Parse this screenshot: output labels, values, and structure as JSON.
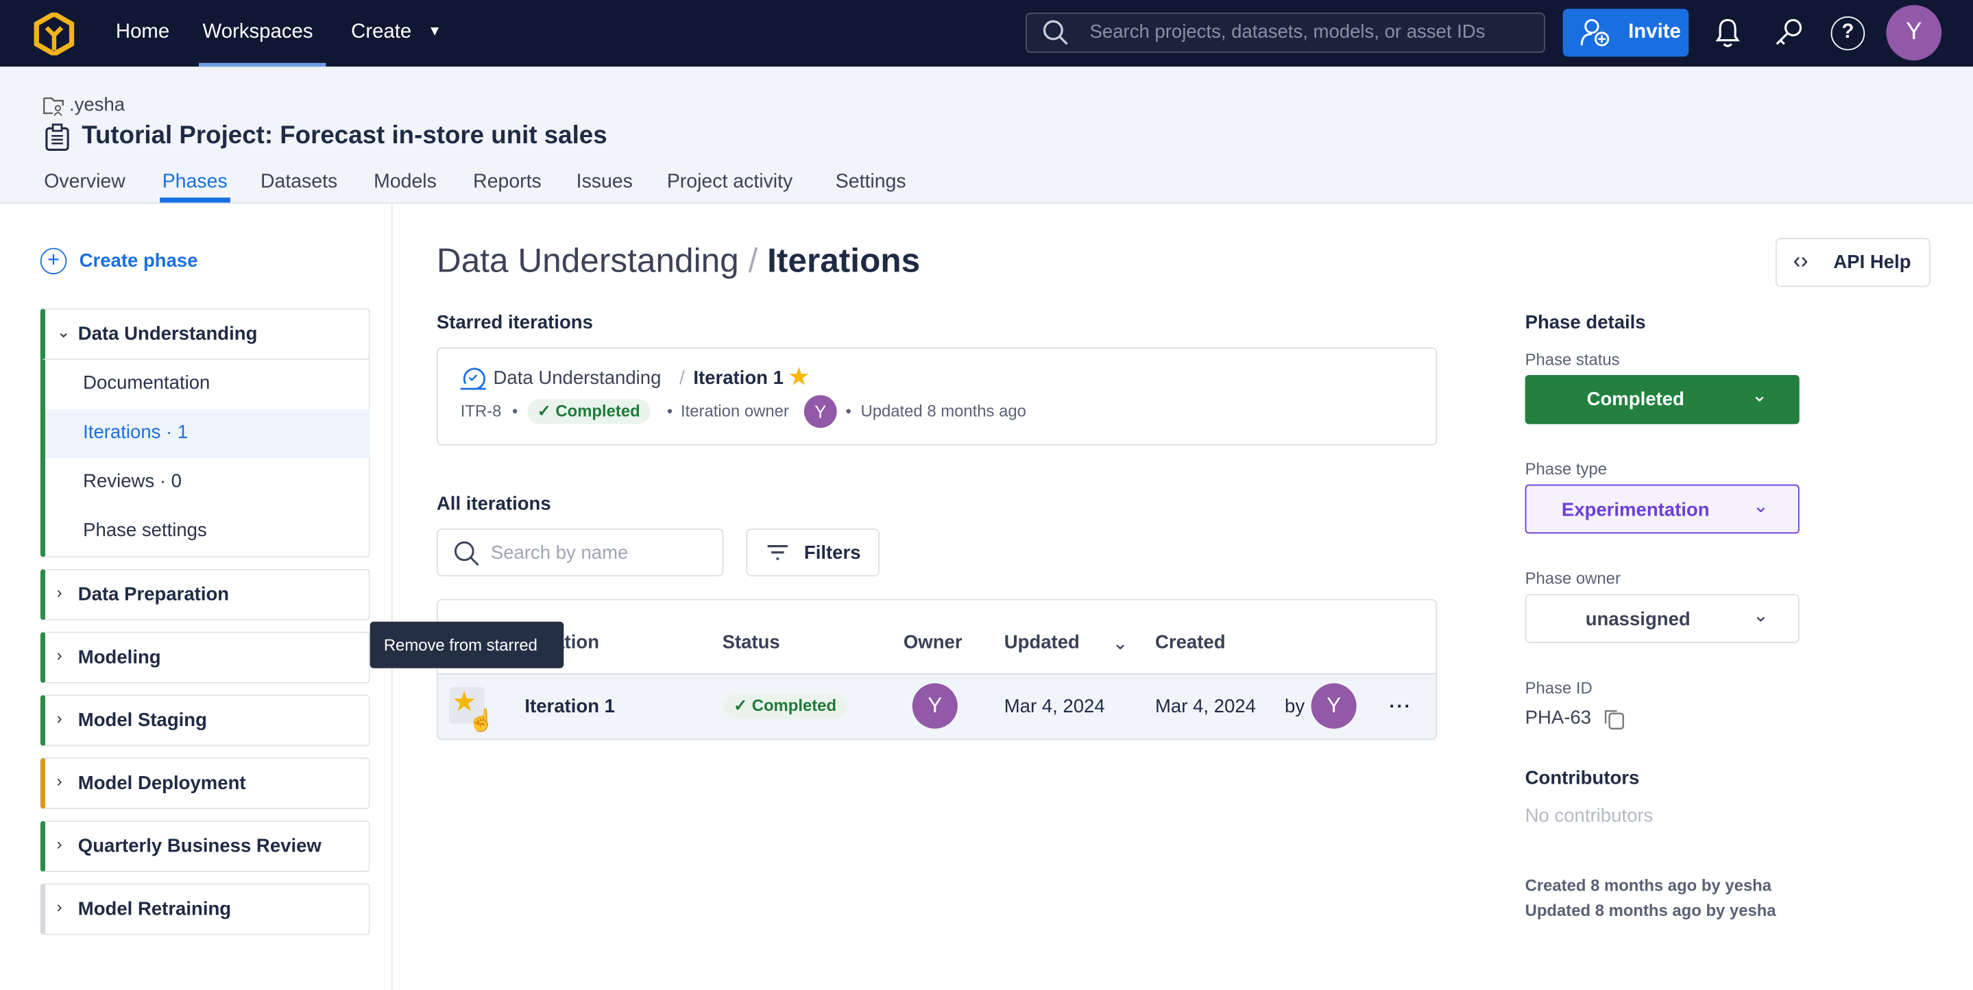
{
  "topbar": {
    "nav": [
      "Home",
      "Workspaces",
      "Create"
    ],
    "search_placeholder": "Search projects, datasets, models, or asset IDs",
    "invite": "Invite",
    "avatar": "Y"
  },
  "header": {
    "workspace": ".yesha",
    "title": "Tutorial Project: Forecast in-store unit sales",
    "tabs": [
      "Overview",
      "Phases",
      "Datasets",
      "Models",
      "Reports",
      "Issues",
      "Project activity",
      "Settings"
    ],
    "active_tab": "Phases"
  },
  "sidebar": {
    "create_phase": "Create phase",
    "phases": [
      {
        "label": "Data Understanding",
        "expanded": true,
        "color": "#2e8b45",
        "children": [
          "Documentation",
          "Iterations · 1",
          "Reviews · 0",
          "Phase settings"
        ]
      },
      {
        "label": "Data Preparation",
        "color": "#2e8b45"
      },
      {
        "label": "Modeling",
        "color": "#2e8b45"
      },
      {
        "label": "Model Staging",
        "color": "#2e8b45"
      },
      {
        "label": "Model Deployment",
        "color": "#d79a1c"
      },
      {
        "label": "Quarterly Business Review",
        "color": "#2e8b45"
      },
      {
        "label": "Model Retraining",
        "color": "#d6d8dd"
      }
    ]
  },
  "main": {
    "breadcrumb_parent": "Data Understanding",
    "breadcrumb_sep": "/",
    "title": "Iterations",
    "api_help": "API Help",
    "starred_heading": "Starred iterations",
    "starred": {
      "phase": "Data Understanding",
      "sep": "/",
      "name": "Iteration 1",
      "id": "ITR-8",
      "status": "Completed",
      "owner_label": "Iteration owner",
      "owner": "Y",
      "updated": "Updated 8 months ago"
    },
    "all_heading": "All iterations",
    "search_placeholder": "Search by name",
    "filters": "Filters",
    "columns": [
      "Iteration",
      "Status",
      "Owner",
      "Updated",
      "Created"
    ],
    "tooltip": "Remove from starred",
    "rows": [
      {
        "name": "Iteration 1",
        "status": "Completed",
        "owner": "Y",
        "updated": "Mar 4, 2024",
        "created": "Mar 4, 2024",
        "by": "by",
        "creator": "Y",
        "starred": true
      }
    ]
  },
  "details": {
    "heading": "Phase details",
    "status_label": "Phase status",
    "status": "Completed",
    "type_label": "Phase type",
    "type": "Experimentation",
    "owner_label": "Phase owner",
    "owner": "unassigned",
    "id_label": "Phase ID",
    "id": "PHA-63",
    "contributors_heading": "Contributors",
    "contributors_empty": "No contributors",
    "created": "Created 8 months ago by yesha",
    "updated": "Updated 8 months ago by yesha"
  },
  "colors": {
    "topbar": "#101733",
    "accent": "#1a6fe0",
    "success": "#1f7a3a",
    "avatar": "#9159a7",
    "star": "#f5b800",
    "type": "#6b3fd6"
  }
}
